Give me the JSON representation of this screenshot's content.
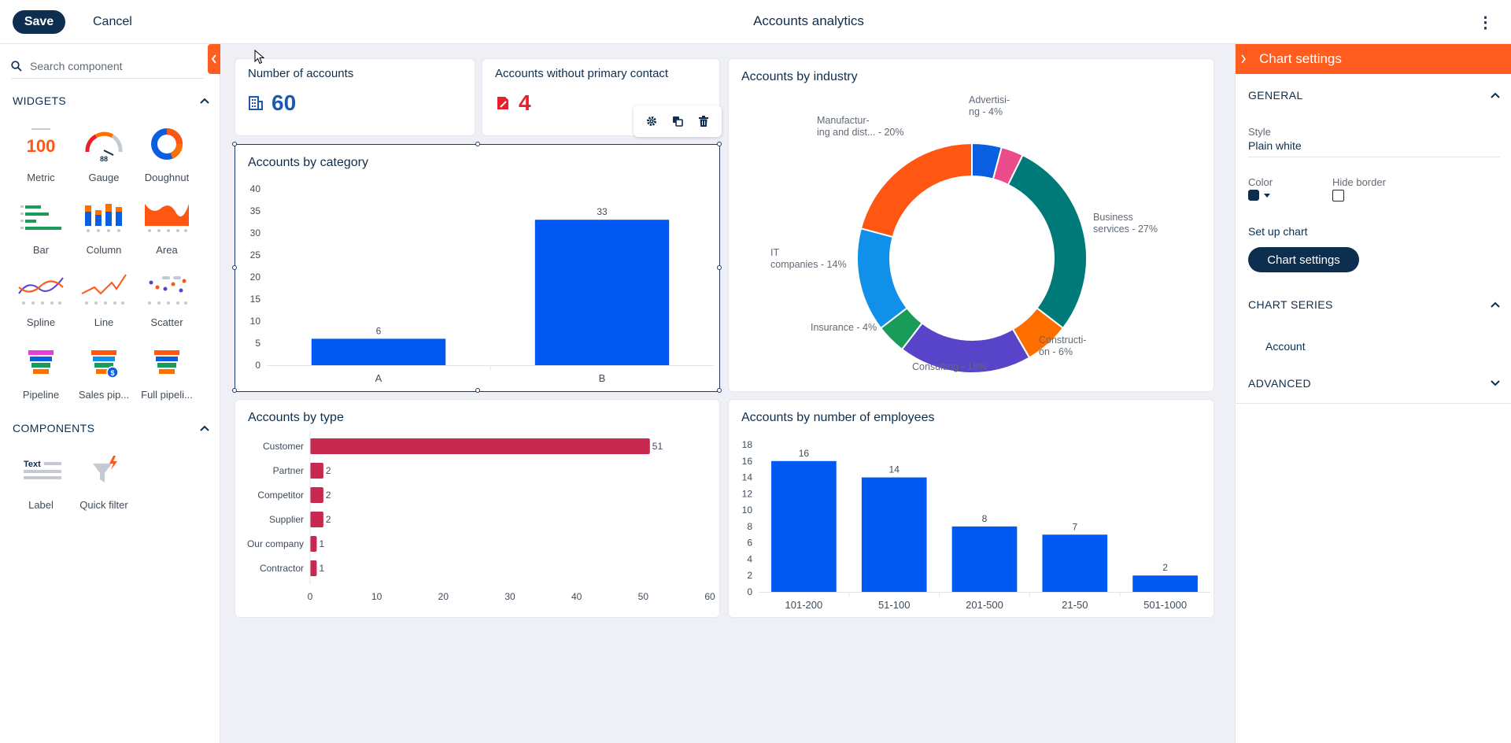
{
  "topbar": {
    "save_label": "Save",
    "cancel_label": "Cancel",
    "title": "Accounts analytics",
    "more_label": "⋮"
  },
  "left": {
    "search_placeholder": "Search component",
    "widgets_heading": "WIDGETS",
    "widgets": [
      {
        "label": "Metric",
        "icon": "metric-icon",
        "icon_text": "100"
      },
      {
        "label": "Gauge",
        "icon": "gauge-icon"
      },
      {
        "label": "Doughnut",
        "icon": "doughnut-icon"
      },
      {
        "label": "Bar",
        "icon": "bar-chart-icon"
      },
      {
        "label": "Column",
        "icon": "column-chart-icon"
      },
      {
        "label": "Area",
        "icon": "area-chart-icon"
      },
      {
        "label": "Spline",
        "icon": "spline-chart-icon"
      },
      {
        "label": "Line",
        "icon": "line-chart-icon"
      },
      {
        "label": "Scatter",
        "icon": "scatter-chart-icon"
      },
      {
        "label": "Pipeline",
        "icon": "pipeline-icon"
      },
      {
        "label": "Sales pip...",
        "icon": "sales-pipeline-icon"
      },
      {
        "label": "Full pipeli...",
        "icon": "full-pipeline-icon"
      }
    ],
    "components_heading": "COMPONENTS",
    "components": [
      {
        "label": "Label",
        "icon": "text-label-icon",
        "icon_text": "Text"
      },
      {
        "label": "Quick filter",
        "icon": "quick-filter-icon"
      }
    ]
  },
  "metrics": [
    {
      "title": "Number of accounts",
      "value": "60",
      "icon": "building-icon",
      "color": "#1d58b0"
    },
    {
      "title": "Accounts without primary contact",
      "value": "4",
      "icon": "contact-card-icon",
      "color": "#e8202a"
    }
  ],
  "colors": {
    "accent": "#ff5c1f",
    "primary_dark": "#0d2e4e",
    "bar_blue": "#0059f2",
    "bar_red": "#c8294e"
  },
  "charts": {
    "category": {
      "title": "Accounts by category",
      "y_ticks": [
        "0",
        "5",
        "10",
        "15",
        "20",
        "25",
        "30",
        "35",
        "40"
      ]
    },
    "industry": {
      "title": "Accounts by industry",
      "slice_labels": [
        [
          "Advertisi-",
          "ng - 4%"
        ],
        [
          "Business",
          "services - 27%"
        ],
        [
          "Constructi-",
          "on - 6%"
        ],
        [
          "Consulting - 18%"
        ],
        [
          "Insurance - 4%"
        ],
        [
          "IT",
          "companies - 14%"
        ],
        [
          "Manufactur-",
          "ing and dist... - 20%"
        ]
      ]
    },
    "type": {
      "title": "Accounts by type",
      "x_ticks": [
        "0",
        "10",
        "20",
        "30",
        "40",
        "50",
        "60"
      ]
    },
    "employees": {
      "title": "Accounts by number of employees",
      "y_ticks": [
        "0",
        "2",
        "4",
        "6",
        "8",
        "10",
        "12",
        "14",
        "16",
        "18"
      ]
    }
  },
  "chart_data": [
    {
      "type": "bar",
      "title": "Accounts by category",
      "categories": [
        "A",
        "B"
      ],
      "values": [
        6,
        33
      ],
      "ylim": [
        0,
        40
      ],
      "data_labels": true,
      "color": "#0059f2"
    },
    {
      "type": "pie",
      "title": "Accounts by industry",
      "categories": [
        "Advertising",
        "Business services",
        "Construction",
        "Consulting",
        "Insurance",
        "IT companies",
        "Manufacturing and dist..."
      ],
      "values": [
        4,
        27,
        6,
        18,
        4,
        14,
        20
      ],
      "donut": true,
      "colors": [
        "#0a5fe0",
        "#ec4b8b",
        "#007a78",
        "#ff6f00",
        "#5744c8",
        "#1b9b5a",
        "#1090e8",
        "#ff5613"
      ],
      "extra_slice_value": 7
    },
    {
      "type": "bar",
      "orientation": "horizontal",
      "title": "Accounts by type",
      "categories": [
        "Customer",
        "Partner",
        "Competitor",
        "Supplier",
        "Our company",
        "Contractor"
      ],
      "values": [
        51,
        2,
        2,
        2,
        1,
        1
      ],
      "xlim": [
        0,
        60
      ],
      "data_labels": true,
      "color": "#c8294e"
    },
    {
      "type": "bar",
      "title": "Accounts by number of employees",
      "categories": [
        "101-200",
        "51-100",
        "201-500",
        "21-50",
        "501-1000"
      ],
      "values": [
        16,
        14,
        8,
        7,
        2
      ],
      "ylim": [
        0,
        18
      ],
      "data_labels": true,
      "color": "#0059f2"
    }
  ],
  "right": {
    "header": "Chart settings",
    "general_heading": "GENERAL",
    "style_label": "Style",
    "style_value": "Plain white",
    "color_label": "Color",
    "color_value": "#0d2e4e",
    "hide_border_label": "Hide border",
    "hide_border_checked": false,
    "setup_label": "Set up chart",
    "chart_settings_button": "Chart settings",
    "series_heading": "CHART SERIES",
    "series_items": [
      "Account"
    ],
    "advanced_heading": "ADVANCED"
  }
}
